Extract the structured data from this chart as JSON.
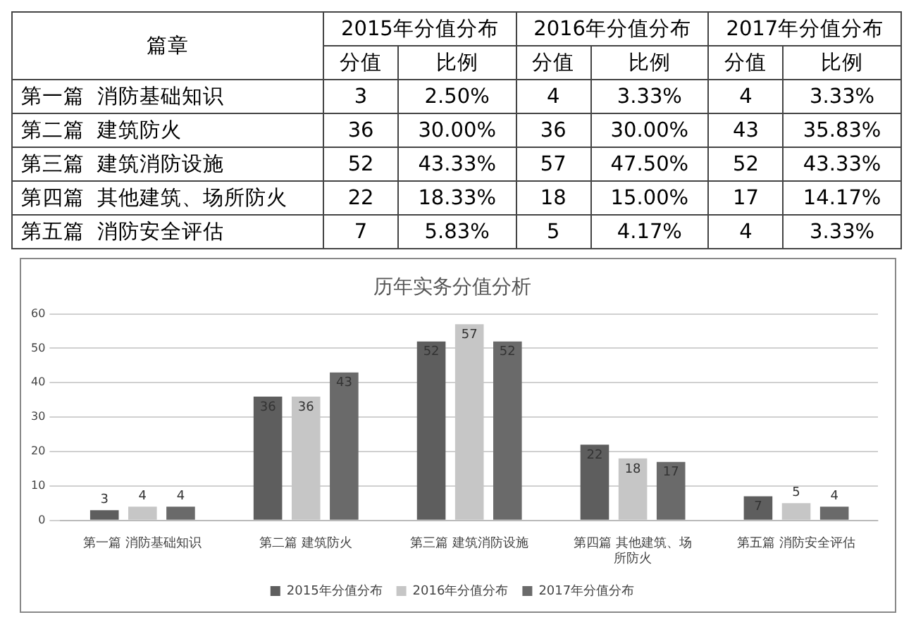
{
  "chart_data": [
    {
      "type": "other",
      "data_labels": true,
      "annotations": [
        "篇章",
        "2015年分值分布",
        "2016年分值分布",
        "2017年分值分布"
      ],
      "categories": [
        "第一篇  消防基础知识",
        "第二篇  建筑防火",
        "第三篇  建筑消防设施",
        "第四篇  其他建筑、场所防火",
        "第五篇  消防安全评估"
      ],
      "series": [
        {
          "name": "分值",
          "values": [
            3,
            36,
            52,
            22,
            7
          ]
        },
        {
          "name": "比例",
          "values": [
            2.5,
            30,
            43.33,
            18.33,
            5.83
          ],
          "value_labels": [
            "2.50%",
            "30.00%",
            "43.33%",
            "18.33%",
            "5.83%"
          ]
        },
        {
          "name": "分值",
          "values": [
            4,
            36,
            57,
            18,
            5
          ]
        },
        {
          "name": "比例",
          "values": [
            3.33,
            30,
            47.5,
            15,
            4.17
          ],
          "value_labels": [
            "3.33%",
            "30.00%",
            "47.50%",
            "15.00%",
            "4.17%"
          ]
        },
        {
          "name": "分值",
          "values": [
            4,
            43,
            52,
            17,
            4
          ]
        },
        {
          "name": "比例",
          "values": [
            3.33,
            35.83,
            43.33,
            14.17,
            3.33
          ],
          "value_labels": [
            "3.33%",
            "35.83%",
            "43.33%",
            "14.17%",
            "3.33%"
          ]
        }
      ]
    },
    {
      "type": "bar",
      "title": "历年实务分值分析",
      "categories": [
        "第一篇 消防基础知识",
        "第二篇 建筑防火",
        "第三篇 建筑消防设施",
        "第四篇 其他建筑、场所防火",
        "第五篇 消防安全评估"
      ],
      "series": [
        {
          "name": "2015年分值分布",
          "color": "#5e5e5e",
          "values": [
            3,
            36,
            52,
            22,
            7
          ]
        },
        {
          "name": "2016年分值分布",
          "color": "#c6c6c6",
          "values": [
            4,
            36,
            57,
            18,
            5
          ]
        },
        {
          "name": "2017年分值分布",
          "color": "#6a6a6a",
          "values": [
            4,
            43,
            52,
            17,
            4
          ]
        }
      ],
      "ylim": [
        0,
        60
      ],
      "yticks": [
        0,
        10,
        20,
        30,
        40,
        50,
        60
      ],
      "grid": "y",
      "legend": "bottom",
      "data_labels": true
    }
  ]
}
